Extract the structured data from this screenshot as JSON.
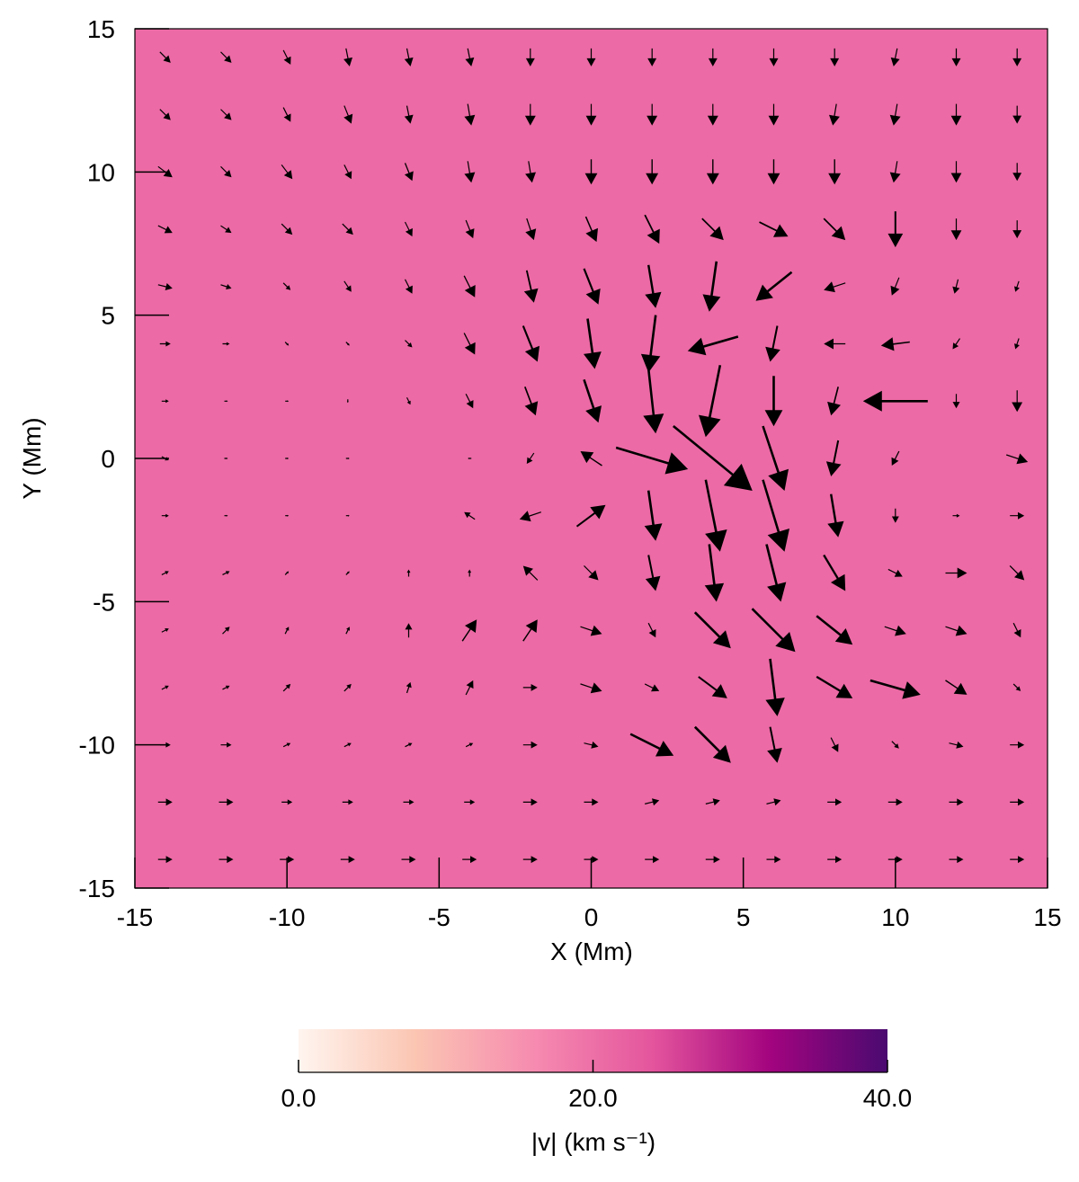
{
  "chart_data": {
    "type": "quiver",
    "xlabel": "X (Mm)",
    "ylabel": "Y (Mm)",
    "xlim": [
      -15,
      15
    ],
    "ylim": [
      -15,
      15
    ],
    "xticks": [
      -15,
      -10,
      -5,
      0,
      5,
      10,
      15
    ],
    "yticks": [
      -15,
      -10,
      -5,
      0,
      5,
      10,
      15
    ],
    "background_color": "#ec6aa5",
    "arrow_color": "#000000",
    "x": [
      -14,
      -12,
      -10,
      -8,
      -6,
      -4,
      -2,
      0,
      2,
      4,
      6,
      8,
      10,
      12,
      14
    ],
    "y": [
      14,
      12,
      10,
      8,
      6,
      4,
      2,
      0,
      -2,
      -4,
      -6,
      -8,
      -10,
      -12,
      -14
    ],
    "u": [
      [
        3,
        3,
        2,
        1,
        1,
        1,
        0,
        0,
        0,
        0,
        0,
        0,
        -1,
        0,
        0
      ],
      [
        3,
        3,
        2,
        2,
        1,
        1,
        0,
        0,
        0,
        0,
        0,
        -1,
        -1,
        0,
        0
      ],
      [
        4,
        3,
        3,
        2,
        2,
        1,
        1,
        0,
        0,
        0,
        0,
        0,
        -1,
        0,
        0
      ],
      [
        4,
        3,
        3,
        3,
        2,
        2,
        2,
        3,
        4,
        6,
        8,
        6,
        0,
        0,
        0
      ],
      [
        4,
        3,
        2,
        2,
        2,
        3,
        2,
        4,
        2,
        -2,
        -10,
        -6,
        -2,
        -1,
        -1
      ],
      [
        3,
        2,
        1,
        1,
        2,
        3,
        4,
        2,
        -2,
        -14,
        -2,
        -6,
        -8,
        -2,
        -1
      ],
      [
        2,
        1,
        1,
        0,
        1,
        2,
        3,
        4,
        2,
        -4,
        0,
        -2,
        -18,
        0,
        0
      ],
      [
        2,
        1,
        1,
        1,
        0,
        -1,
        -2,
        -6,
        20,
        22,
        6,
        -2,
        -2,
        0,
        6
      ],
      [
        2,
        1,
        1,
        1,
        0,
        -3,
        -6,
        8,
        2,
        4,
        6,
        2,
        0,
        2,
        4
      ],
      [
        2,
        2,
        1,
        1,
        0,
        0,
        -4,
        4,
        2,
        2,
        4,
        6,
        4,
        6,
        4
      ],
      [
        2,
        2,
        1,
        1,
        0,
        4,
        4,
        6,
        2,
        10,
        12,
        10,
        6,
        6,
        2
      ],
      [
        2,
        2,
        2,
        2,
        1,
        2,
        4,
        6,
        4,
        8,
        2,
        10,
        14,
        6,
        2
      ],
      [
        3,
        3,
        2,
        2,
        2,
        2,
        4,
        4,
        12,
        10,
        2,
        2,
        2,
        4,
        4
      ],
      [
        4,
        4,
        3,
        3,
        3,
        3,
        4,
        4,
        4,
        4,
        4,
        4,
        4,
        4,
        4
      ],
      [
        4,
        4,
        4,
        4,
        4,
        4,
        4,
        4,
        4,
        4,
        4,
        4,
        4,
        4,
        4
      ]
    ],
    "v": [
      [
        -3,
        -3,
        -4,
        -5,
        -5,
        -5,
        -5,
        -5,
        -5,
        -5,
        -5,
        -5,
        -5,
        -5,
        -5
      ],
      [
        -3,
        -3,
        -4,
        -5,
        -5,
        -6,
        -6,
        -6,
        -6,
        -6,
        -6,
        -6,
        -6,
        -6,
        -5
      ],
      [
        -3,
        -3,
        -4,
        -4,
        -5,
        -6,
        -6,
        -7,
        -7,
        -7,
        -7,
        -7,
        -6,
        -6,
        -5
      ],
      [
        -2,
        -2,
        -3,
        -3,
        -4,
        -5,
        -6,
        -7,
        -8,
        -6,
        -4,
        -6,
        -10,
        -6,
        -5
      ],
      [
        -1,
        -1,
        -2,
        -3,
        -4,
        -6,
        -9,
        -10,
        -12,
        -14,
        -8,
        -2,
        -5,
        -4,
        -3
      ],
      [
        0,
        0,
        -1,
        -1,
        -2,
        -6,
        -10,
        -14,
        -16,
        -4,
        -10,
        0,
        -1,
        -3,
        -3
      ],
      [
        0,
        0,
        0,
        -1,
        -2,
        -4,
        -8,
        -12,
        -18,
        -20,
        -14,
        -8,
        0,
        -4,
        -6
      ],
      [
        -1,
        0,
        0,
        0,
        0,
        0,
        -3,
        4,
        -6,
        -18,
        -18,
        -10,
        -4,
        0,
        -2
      ],
      [
        0,
        0,
        0,
        0,
        0,
        2,
        -2,
        6,
        -14,
        -20,
        -20,
        -12,
        -4,
        0,
        0
      ],
      [
        1,
        1,
        1,
        1,
        2,
        2,
        4,
        -4,
        -10,
        -16,
        -16,
        -10,
        -2,
        0,
        -4
      ],
      [
        1,
        2,
        2,
        2,
        4,
        6,
        6,
        -2,
        -4,
        -10,
        -12,
        -8,
        -2,
        -2,
        -4
      ],
      [
        1,
        1,
        2,
        2,
        3,
        4,
        0,
        -2,
        -2,
        -6,
        -16,
        -6,
        -4,
        -4,
        -2
      ],
      [
        0,
        0,
        1,
        1,
        1,
        1,
        0,
        -1,
        -6,
        -10,
        -10,
        -4,
        -2,
        -1,
        0
      ],
      [
        0,
        0,
        0,
        0,
        0,
        0,
        0,
        0,
        1,
        1,
        1,
        0,
        0,
        0,
        0
      ],
      [
        0,
        0,
        0,
        0,
        0,
        0,
        0,
        0,
        0,
        0,
        0,
        0,
        0,
        0,
        0
      ]
    ],
    "colorbar": {
      "label": "|v|  (km s⁻¹)",
      "lim": [
        0,
        40
      ],
      "ticks": [
        {
          "value": 0,
          "label": "0.0"
        },
        {
          "value": 20,
          "label": "20.0"
        },
        {
          "value": 40,
          "label": "40.0"
        }
      ],
      "colors": [
        "#fff5ef",
        "#fbc5b2",
        "#f68bb0",
        "#e4559d",
        "#a3047f",
        "#4a0a70"
      ]
    }
  }
}
